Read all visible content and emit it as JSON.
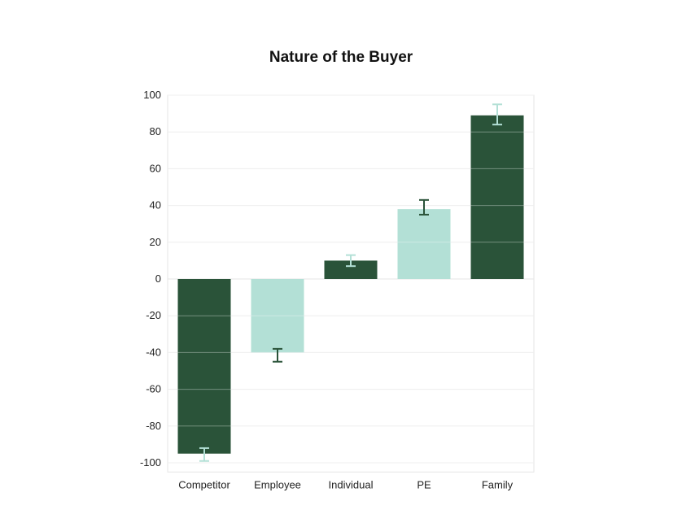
{
  "chart_data": {
    "type": "bar",
    "title": "Nature of the Buyer",
    "xlabel": "",
    "ylabel": "",
    "categories": [
      "Competitor",
      "Employee",
      "Individual",
      "PE",
      "Family"
    ],
    "values": [
      -95,
      -40,
      10,
      38,
      89
    ],
    "error_low": [
      -99,
      -45,
      7,
      35,
      84
    ],
    "error_high": [
      -92,
      -38,
      13,
      43,
      95
    ],
    "ylim": [
      -105,
      100
    ],
    "yticks": [
      100,
      80,
      60,
      40,
      20,
      0,
      -20,
      -40,
      -60,
      -80,
      -100
    ],
    "grid": true,
    "bar_colors": [
      "#2a5339",
      "#b3e0d6",
      "#2a5339",
      "#b3e0d6",
      "#2a5339"
    ],
    "errorbar_colors": [
      "#b3e0d6",
      "#2a5339",
      "#b3e0d6",
      "#2a5339",
      "#b3e0d6"
    ]
  }
}
